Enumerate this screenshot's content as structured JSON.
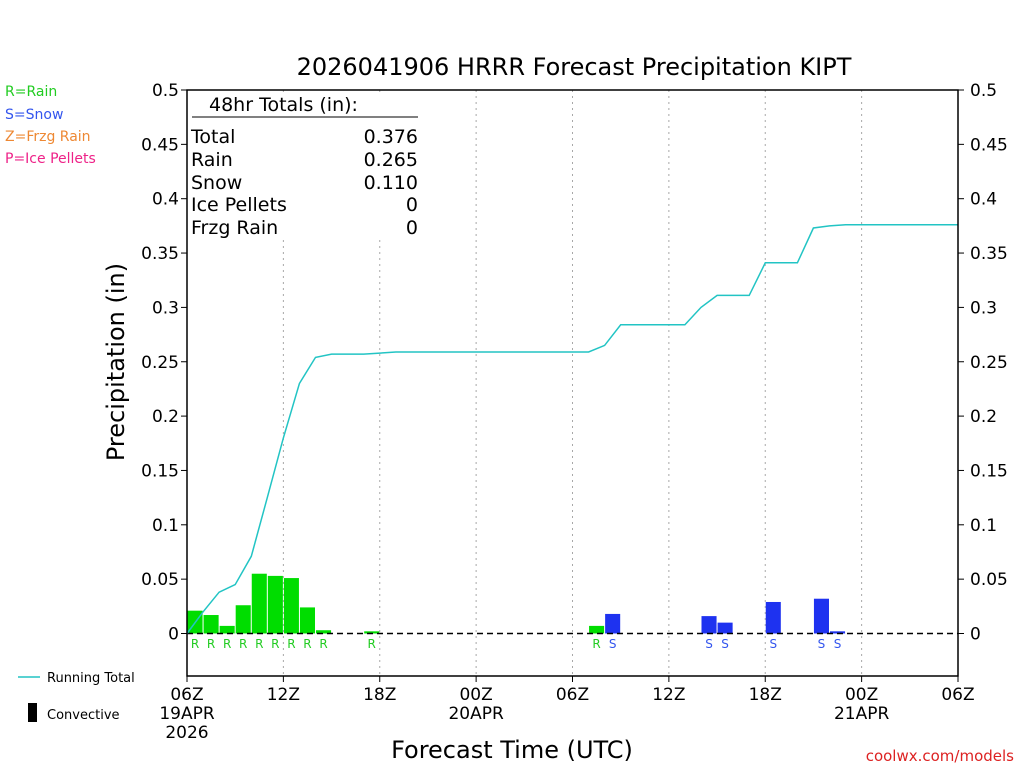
{
  "chart_data": {
    "type": "bar",
    "title": "2026041906 HRRR Forecast Precipitation KIPT",
    "xlabel": "Forecast Time (UTC)",
    "ylabel": "Precipitation (in)",
    "ylim": [
      0,
      0.5
    ],
    "xlim_hours": [
      0,
      48
    ],
    "yticks": [
      "0",
      "0.05",
      "0.1",
      "0.15",
      "0.2",
      "0.25",
      "0.3",
      "0.35",
      "0.4",
      "0.45",
      "0.5"
    ],
    "xticks": [
      {
        "hour": 0,
        "lines": [
          "06Z",
          "19APR",
          "2026"
        ]
      },
      {
        "hour": 6,
        "lines": [
          "12Z"
        ]
      },
      {
        "hour": 12,
        "lines": [
          "18Z"
        ]
      },
      {
        "hour": 18,
        "lines": [
          "00Z",
          "20APR"
        ]
      },
      {
        "hour": 24,
        "lines": [
          "06Z"
        ]
      },
      {
        "hour": 30,
        "lines": [
          "12Z"
        ]
      },
      {
        "hour": 36,
        "lines": [
          "18Z"
        ]
      },
      {
        "hour": 42,
        "lines": [
          "00Z",
          "21APR"
        ]
      },
      {
        "hour": 48,
        "lines": [
          "06Z"
        ]
      }
    ],
    "grid": "dotted vertical lines at each 6-hour x tick",
    "hourly_bars": [
      {
        "hour": 1,
        "value": 0.021,
        "type": "R"
      },
      {
        "hour": 2,
        "value": 0.017,
        "type": "R"
      },
      {
        "hour": 3,
        "value": 0.007,
        "type": "R"
      },
      {
        "hour": 4,
        "value": 0.026,
        "type": "R"
      },
      {
        "hour": 5,
        "value": 0.055,
        "type": "R"
      },
      {
        "hour": 6,
        "value": 0.053,
        "type": "R"
      },
      {
        "hour": 7,
        "value": 0.051,
        "type": "R"
      },
      {
        "hour": 8,
        "value": 0.024,
        "type": "R"
      },
      {
        "hour": 9,
        "value": 0.003,
        "type": "R"
      },
      {
        "hour": 12,
        "value": 0.002,
        "type": "R"
      },
      {
        "hour": 26,
        "value": 0.007,
        "type": "R"
      },
      {
        "hour": 27,
        "value": 0.018,
        "type": "S"
      },
      {
        "hour": 33,
        "value": 0.016,
        "type": "S"
      },
      {
        "hour": 34,
        "value": 0.01,
        "type": "S"
      },
      {
        "hour": 37,
        "value": 0.029,
        "type": "S"
      },
      {
        "hour": 40,
        "value": 0.032,
        "type": "S"
      },
      {
        "hour": 41,
        "value": 0.002,
        "type": "S"
      }
    ],
    "running_total": {
      "name": "Running Total",
      "color": "#22c4c4",
      "hours": [
        0,
        1,
        2,
        3,
        4,
        5,
        6,
        7,
        8,
        9,
        10,
        11,
        12,
        13,
        14,
        25,
        26,
        27,
        28,
        29,
        30,
        31,
        32,
        33,
        34,
        35,
        36,
        37,
        38,
        39,
        40,
        41,
        42,
        48
      ],
      "values": [
        0.0,
        0.02,
        0.038,
        0.045,
        0.071,
        0.125,
        0.18,
        0.23,
        0.254,
        0.257,
        0.257,
        0.257,
        0.258,
        0.259,
        0.259,
        0.259,
        0.265,
        0.284,
        0.284,
        0.284,
        0.284,
        0.284,
        0.3,
        0.311,
        0.311,
        0.311,
        0.341,
        0.341,
        0.341,
        0.373,
        0.375,
        0.376,
        0.376,
        0.376
      ]
    },
    "totals_box": {
      "heading": "48hr Totals (in):",
      "rows": [
        {
          "label": "Total",
          "value": "0.376"
        },
        {
          "label": "Rain",
          "value": "0.265"
        },
        {
          "label": "Snow",
          "value": "0.110"
        },
        {
          "label": "Ice Pellets",
          "value": "0"
        },
        {
          "label": "Frzg Rain",
          "value": "0"
        }
      ]
    },
    "type_legend": [
      {
        "text": "R=Rain",
        "color": "#22cc22"
      },
      {
        "text": "S=Snow",
        "color": "#3355ee"
      },
      {
        "text": "Z=Frzg Rain",
        "color": "#ee8833"
      },
      {
        "text": "P=Ice Pellets",
        "color": "#ee2288"
      }
    ],
    "bottom_legend": {
      "line_label": "Running Total",
      "bar_label": "Convective"
    },
    "colors": {
      "rain": "#00dd00",
      "snow": "#1e32f0",
      "rain_text": "#22cc22",
      "snow_text": "#3355ee",
      "line": "#22c4c4"
    },
    "watermark": "coolwx.com/models"
  }
}
